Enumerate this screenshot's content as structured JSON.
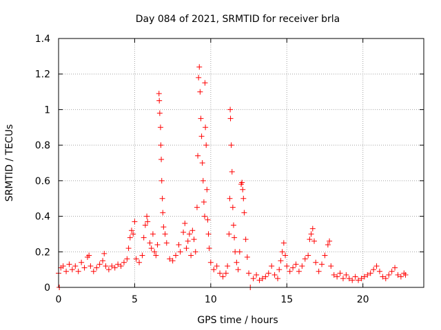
{
  "chart_data": {
    "type": "scatter",
    "title": "Day 084 of 2021, SRMTID for receiver brla",
    "xlabel": "GPS time / hours",
    "ylabel": "SRMTID / TECUs",
    "xlim": [
      0,
      24
    ],
    "ylim": [
      0,
      1.4
    ],
    "xticks": [
      0,
      5,
      10,
      15,
      20
    ],
    "xtick_labels": [
      "0",
      "5",
      "10",
      "15",
      "20"
    ],
    "yticks": [
      0,
      0.2,
      0.4,
      0.6,
      0.8,
      1,
      1.2,
      1.4
    ],
    "ytick_labels": [
      "0",
      "0.2",
      "0.4",
      "0.6",
      "0.8",
      "1",
      "1.2",
      "1.4"
    ],
    "grid": true,
    "marker": "+",
    "colors": {
      "series": "#ff0000",
      "grid": "#a0a0a0",
      "axis": "#000000"
    },
    "series": [
      {
        "name": "SRMTID",
        "points": [
          [
            0.0,
            0.08
          ],
          [
            0.05,
            0.0
          ],
          [
            0.15,
            0.11
          ],
          [
            0.3,
            0.12
          ],
          [
            0.5,
            0.09
          ],
          [
            0.7,
            0.13
          ],
          [
            0.9,
            0.1
          ],
          [
            1.1,
            0.12
          ],
          [
            1.3,
            0.09
          ],
          [
            1.5,
            0.14
          ],
          [
            1.7,
            0.11
          ],
          [
            1.9,
            0.17
          ],
          [
            2.0,
            0.18
          ],
          [
            2.1,
            0.12
          ],
          [
            2.3,
            0.09
          ],
          [
            2.5,
            0.11
          ],
          [
            2.7,
            0.13
          ],
          [
            2.9,
            0.15
          ],
          [
            3.0,
            0.19
          ],
          [
            3.1,
            0.12
          ],
          [
            3.3,
            0.1
          ],
          [
            3.5,
            0.12
          ],
          [
            3.7,
            0.11
          ],
          [
            3.9,
            0.13
          ],
          [
            4.1,
            0.12
          ],
          [
            4.3,
            0.14
          ],
          [
            4.5,
            0.16
          ],
          [
            4.6,
            0.22
          ],
          [
            4.7,
            0.28
          ],
          [
            4.8,
            0.32
          ],
          [
            4.9,
            0.3
          ],
          [
            5.0,
            0.37
          ],
          [
            5.1,
            0.16
          ],
          [
            5.3,
            0.14
          ],
          [
            5.5,
            0.18
          ],
          [
            5.6,
            0.28
          ],
          [
            5.7,
            0.35
          ],
          [
            5.8,
            0.4
          ],
          [
            5.85,
            0.37
          ],
          [
            6.0,
            0.25
          ],
          [
            6.1,
            0.22
          ],
          [
            6.2,
            0.3
          ],
          [
            6.3,
            0.2
          ],
          [
            6.4,
            0.18
          ],
          [
            6.5,
            0.24
          ],
          [
            6.6,
            1.09
          ],
          [
            6.62,
            1.05
          ],
          [
            6.65,
            0.98
          ],
          [
            6.7,
            0.9
          ],
          [
            6.72,
            0.8
          ],
          [
            6.75,
            0.72
          ],
          [
            6.78,
            0.6
          ],
          [
            6.82,
            0.5
          ],
          [
            6.85,
            0.42
          ],
          [
            6.9,
            0.34
          ],
          [
            7.0,
            0.3
          ],
          [
            7.1,
            0.25
          ],
          [
            7.3,
            0.16
          ],
          [
            7.5,
            0.15
          ],
          [
            7.7,
            0.18
          ],
          [
            7.9,
            0.24
          ],
          [
            8.0,
            0.2
          ],
          [
            8.2,
            0.31
          ],
          [
            8.3,
            0.36
          ],
          [
            8.4,
            0.22
          ],
          [
            8.5,
            0.26
          ],
          [
            8.6,
            0.3
          ],
          [
            8.7,
            0.18
          ],
          [
            8.8,
            0.32
          ],
          [
            8.9,
            0.27
          ],
          [
            9.0,
            0.2
          ],
          [
            9.1,
            0.45
          ],
          [
            9.15,
            0.74
          ],
          [
            9.2,
            1.18
          ],
          [
            9.25,
            1.24
          ],
          [
            9.3,
            1.1
          ],
          [
            9.35,
            0.95
          ],
          [
            9.4,
            0.85
          ],
          [
            9.45,
            0.7
          ],
          [
            9.5,
            0.6
          ],
          [
            9.55,
            0.48
          ],
          [
            9.6,
            0.4
          ],
          [
            9.62,
            1.15
          ],
          [
            9.65,
            0.9
          ],
          [
            9.7,
            0.8
          ],
          [
            9.75,
            0.55
          ],
          [
            9.8,
            0.38
          ],
          [
            9.85,
            0.3
          ],
          [
            9.9,
            0.22
          ],
          [
            10.0,
            0.14
          ],
          [
            10.2,
            0.1
          ],
          [
            10.4,
            0.12
          ],
          [
            10.6,
            0.08
          ],
          [
            10.8,
            0.06
          ],
          [
            11.0,
            0.08
          ],
          [
            11.1,
            0.12
          ],
          [
            11.2,
            0.3
          ],
          [
            11.25,
            0.5
          ],
          [
            11.28,
            1.0
          ],
          [
            11.3,
            0.95
          ],
          [
            11.35,
            0.8
          ],
          [
            11.4,
            0.65
          ],
          [
            11.45,
            0.45
          ],
          [
            11.5,
            0.35
          ],
          [
            11.55,
            0.28
          ],
          [
            11.6,
            0.2
          ],
          [
            11.7,
            0.14
          ],
          [
            11.8,
            0.1
          ],
          [
            11.9,
            0.2
          ],
          [
            12.0,
            0.58
          ],
          [
            12.05,
            0.59
          ],
          [
            12.1,
            0.55
          ],
          [
            12.15,
            0.5
          ],
          [
            12.2,
            0.42
          ],
          [
            12.3,
            0.27
          ],
          [
            12.4,
            0.17
          ],
          [
            12.5,
            0.08
          ],
          [
            12.6,
            0.0
          ],
          [
            12.8,
            0.05
          ],
          [
            13.0,
            0.07
          ],
          [
            13.2,
            0.04
          ],
          [
            13.4,
            0.05
          ],
          [
            13.6,
            0.06
          ],
          [
            13.8,
            0.08
          ],
          [
            14.0,
            0.12
          ],
          [
            14.2,
            0.07
          ],
          [
            14.4,
            0.05
          ],
          [
            14.5,
            0.1
          ],
          [
            14.6,
            0.15
          ],
          [
            14.7,
            0.2
          ],
          [
            14.8,
            0.25
          ],
          [
            14.9,
            0.18
          ],
          [
            15.0,
            0.12
          ],
          [
            15.2,
            0.09
          ],
          [
            15.4,
            0.11
          ],
          [
            15.6,
            0.13
          ],
          [
            15.8,
            0.09
          ],
          [
            16.0,
            0.12
          ],
          [
            16.2,
            0.16
          ],
          [
            16.4,
            0.18
          ],
          [
            16.5,
            0.27
          ],
          [
            16.6,
            0.3
          ],
          [
            16.7,
            0.33
          ],
          [
            16.8,
            0.26
          ],
          [
            16.9,
            0.14
          ],
          [
            17.1,
            0.09
          ],
          [
            17.3,
            0.13
          ],
          [
            17.5,
            0.18
          ],
          [
            17.7,
            0.24
          ],
          [
            17.8,
            0.26
          ],
          [
            17.9,
            0.12
          ],
          [
            18.1,
            0.07
          ],
          [
            18.3,
            0.06
          ],
          [
            18.5,
            0.08
          ],
          [
            18.7,
            0.05
          ],
          [
            18.9,
            0.07
          ],
          [
            19.1,
            0.05
          ],
          [
            19.3,
            0.04
          ],
          [
            19.5,
            0.06
          ],
          [
            19.7,
            0.04
          ],
          [
            19.9,
            0.05
          ],
          [
            20.1,
            0.06
          ],
          [
            20.3,
            0.07
          ],
          [
            20.5,
            0.08
          ],
          [
            20.7,
            0.1
          ],
          [
            20.9,
            0.12
          ],
          [
            21.1,
            0.09
          ],
          [
            21.3,
            0.06
          ],
          [
            21.5,
            0.05
          ],
          [
            21.7,
            0.07
          ],
          [
            21.9,
            0.09
          ],
          [
            22.1,
            0.11
          ],
          [
            22.3,
            0.07
          ],
          [
            22.5,
            0.06
          ],
          [
            22.7,
            0.08
          ],
          [
            22.8,
            0.07
          ]
        ]
      }
    ]
  }
}
